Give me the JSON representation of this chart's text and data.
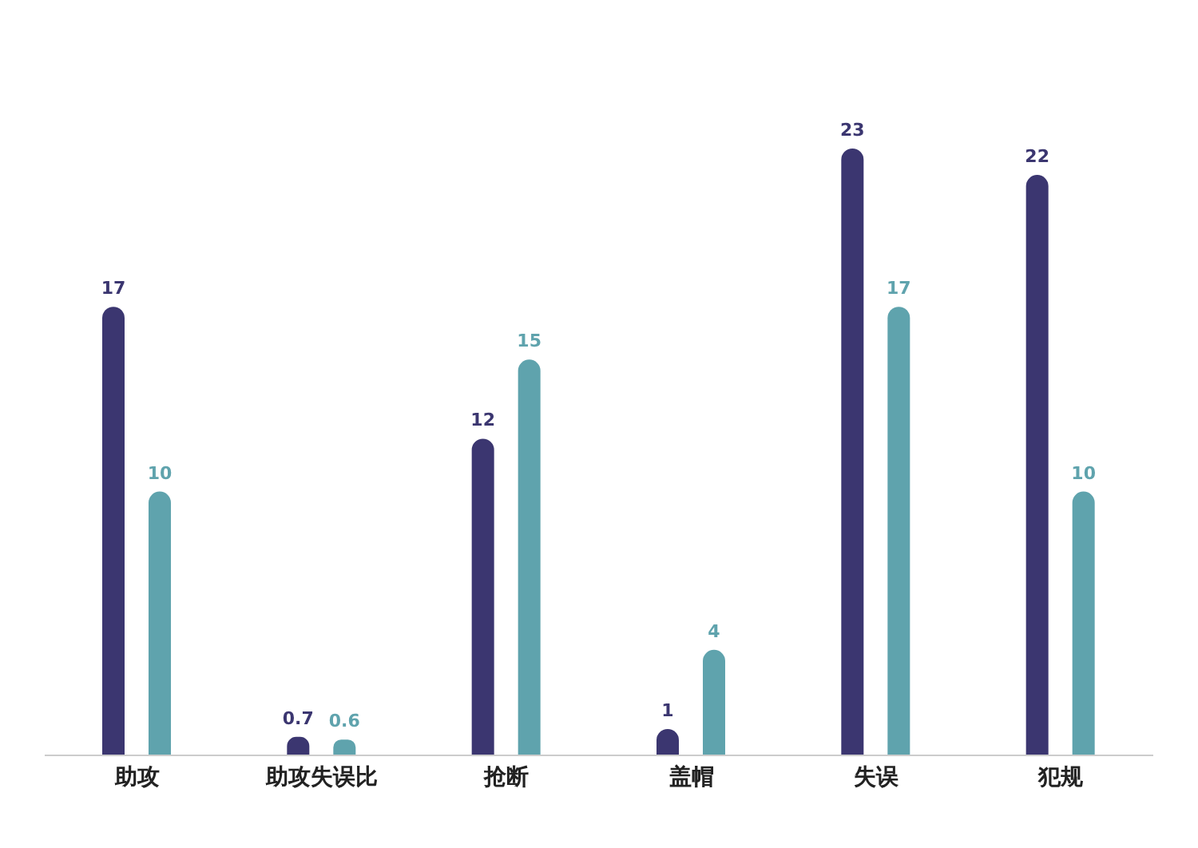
{
  "chart_data": {
    "type": "bar",
    "categories": [
      "助攻",
      "助攻失误比",
      "抢断",
      "盖帽",
      "失误",
      "犯规"
    ],
    "series": [
      {
        "color": "#3b3670",
        "values": [
          17,
          0.7,
          12,
          1,
          23,
          22
        ]
      },
      {
        "color": "#5fa3ad",
        "values": [
          10,
          0.6,
          15,
          4,
          17,
          10
        ]
      }
    ],
    "data_labels": true,
    "grid": false,
    "legend": false
  }
}
